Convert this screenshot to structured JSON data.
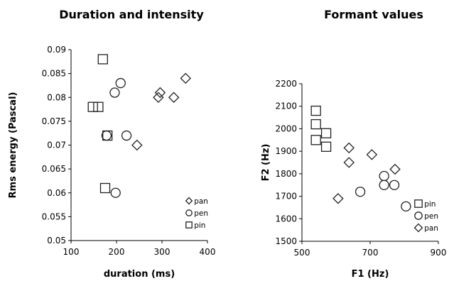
{
  "chart_data": [
    {
      "type": "scatter",
      "title": "Duration and intensity",
      "xlabel": "duration (ms)",
      "ylabel": "Rms energy (Pascal)",
      "xlim": [
        100,
        400
      ],
      "ylim": [
        0.05,
        0.09
      ],
      "x_ticks": [
        "100",
        "200",
        "300",
        "400"
      ],
      "y_ticks": [
        "0.05",
        "0.055",
        "0.06",
        "0.065",
        "0.07",
        "0.075",
        "0.08",
        "0.085",
        "0.09"
      ],
      "legend_position": "bottom-right",
      "series": [
        {
          "name": "pan",
          "marker": "diamond",
          "points": [
            [
              245,
              0.07
            ],
            [
              292,
              0.08
            ],
            [
              296,
              0.081
            ],
            [
              326,
              0.08
            ],
            [
              352,
              0.084
            ]
          ]
        },
        {
          "name": "pen",
          "marker": "circle",
          "points": [
            [
              178,
              0.072
            ],
            [
              196,
              0.081
            ],
            [
              209,
              0.083
            ],
            [
              222,
              0.072
            ],
            [
              198,
              0.06
            ]
          ]
        },
        {
          "name": "pin",
          "marker": "square",
          "points": [
            [
              148,
              0.078
            ],
            [
              160,
              0.078
            ],
            [
              170,
              0.088
            ],
            [
              180,
              0.072
            ],
            [
              175,
              0.061
            ]
          ]
        }
      ]
    },
    {
      "type": "scatter",
      "title": "Formant values",
      "xlabel": "F1 (Hz)",
      "ylabel": "F2 (Hz)",
      "xlim": [
        500,
        900
      ],
      "ylim": [
        1500,
        2200
      ],
      "x_ticks": [
        "500",
        "700",
        "900"
      ],
      "y_ticks": [
        "1500",
        "1600",
        "1700",
        "1800",
        "1900",
        "2000",
        "2100",
        "2200"
      ],
      "legend_position": "bottom-right",
      "series": [
        {
          "name": "pin",
          "marker": "square",
          "points": [
            [
              541,
              2080
            ],
            [
              541,
              2020
            ],
            [
              541,
              1950
            ],
            [
              571,
              1980
            ],
            [
              571,
              1920
            ]
          ]
        },
        {
          "name": "pen",
          "marker": "circle",
          "points": [
            [
              671,
              1720
            ],
            [
              741,
              1790
            ],
            [
              741,
              1750
            ],
            [
              771,
              1750
            ],
            [
              805,
              1655
            ]
          ]
        },
        {
          "name": "pan",
          "marker": "diamond",
          "points": [
            [
              606,
              1690
            ],
            [
              638,
              1915
            ],
            [
              638,
              1850
            ],
            [
              705,
              1885
            ],
            [
              773,
              1820
            ]
          ]
        }
      ]
    }
  ]
}
